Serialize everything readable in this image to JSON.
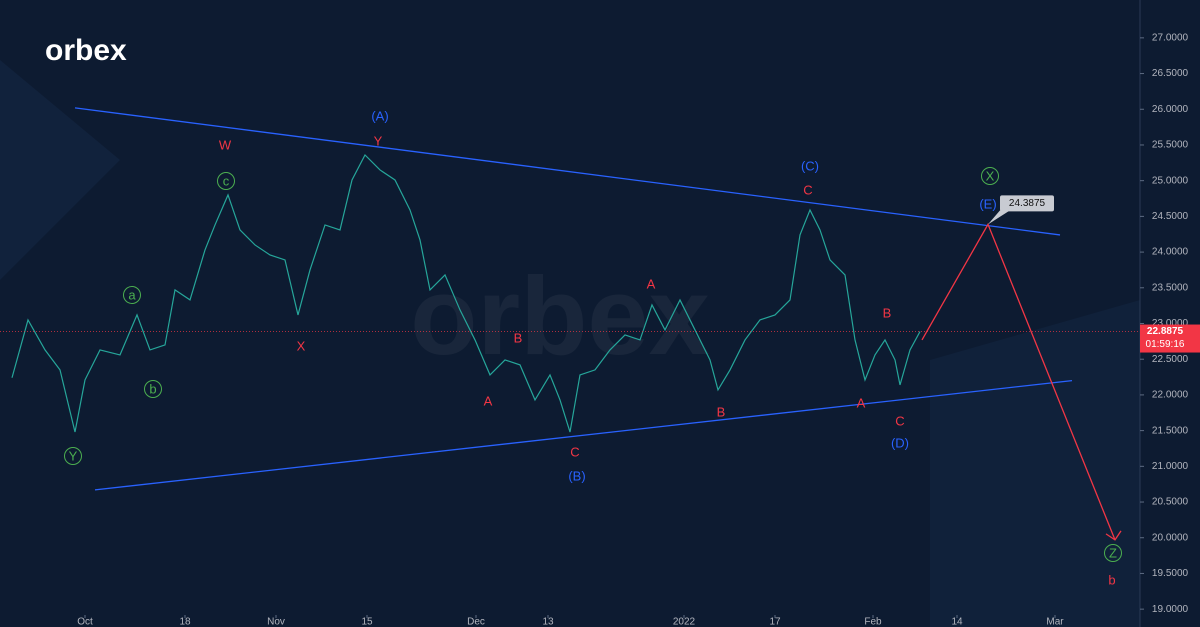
{
  "chart_data": {
    "type": "line",
    "logo": "orbex",
    "watermark": "orbex",
    "x": [
      1.2,
      2.8,
      4.5,
      6.0,
      7.5,
      8.5,
      10.0,
      12.0,
      13.7,
      15.0,
      16.5,
      17.5,
      19.0,
      20.5,
      21.5,
      22.8,
      24.0,
      25.5,
      27.0,
      28.5,
      29.8,
      31.0,
      32.5,
      34.0,
      35.2,
      36.5,
      38.0,
      39.5,
      41.0,
      42.0,
      43.0,
      44.5,
      46.0,
      47.5,
      49.0,
      50.5,
      52.0,
      53.5,
      55.0,
      56.0,
      57.0,
      58.0,
      59.5,
      61.0,
      62.5,
      64.0,
      65.2,
      66.5,
      68.0,
      69.0,
      70.0,
      71.0,
      71.8,
      73.0,
      74.5,
      76.0,
      77.5,
      79.0,
      80.0,
      81.0,
      82.0,
      83.0,
      84.5,
      85.5,
      86.5,
      87.5,
      88.5,
      89.5,
      90.0,
      91.0,
      92.0
    ],
    "series": [
      {
        "color": "#26a69a",
        "values": [
          22.24,
          23.05,
          22.63,
          22.35,
          21.48,
          22.21,
          22.63,
          22.56,
          23.12,
          22.63,
          22.7,
          23.47,
          23.33,
          24.03,
          24.38,
          24.8,
          24.31,
          24.1,
          23.96,
          23.89,
          23.12,
          23.75,
          24.38,
          24.31,
          25.01,
          25.36,
          25.15,
          25.01,
          24.59,
          24.17,
          23.47,
          23.68,
          23.19,
          22.77,
          22.28,
          22.49,
          22.42,
          21.93,
          22.28,
          21.93,
          21.48,
          22.28,
          22.35,
          22.63,
          22.84,
          22.77,
          23.26,
          22.91,
          23.33,
          23.05,
          22.77,
          22.49,
          22.07,
          22.35,
          22.77,
          23.05,
          23.12,
          23.33,
          24.24,
          24.59,
          24.31,
          23.89,
          23.68,
          22.77,
          22.21,
          22.56,
          22.77,
          22.49,
          22.14,
          22.63,
          22.8875
        ]
      }
    ],
    "countdown": "01:59:16",
    "xlim": [
      0,
      114
    ],
    "xticks": [
      {
        "value": 8.5,
        "label": "Oct"
      },
      {
        "value": 18.5,
        "label": "18"
      },
      {
        "value": 27.6,
        "label": "Nov"
      },
      {
        "value": 36.7,
        "label": "15"
      },
      {
        "value": 47.6,
        "label": "Dec"
      },
      {
        "value": 54.8,
        "label": "13"
      },
      {
        "value": 68.4,
        "label": "2022"
      },
      {
        "value": 77.5,
        "label": "17"
      },
      {
        "value": 87.3,
        "label": "Feb"
      },
      {
        "value": 95.7,
        "label": "14"
      },
      {
        "value": 105.5,
        "label": "Mar"
      }
    ],
    "ylim": [
      18.75,
      27.53
    ],
    "yticks": [
      {
        "value": 19,
        "label": "19.0000"
      },
      {
        "value": 19.5,
        "label": "19.5000"
      },
      {
        "value": 20,
        "label": "20.0000"
      },
      {
        "value": 20.5,
        "label": "20.5000"
      },
      {
        "value": 21,
        "label": "21.0000"
      },
      {
        "value": 21.5,
        "label": "21.5000"
      },
      {
        "value": 22,
        "label": "22.0000"
      },
      {
        "value": 22.5,
        "label": "22.5000"
      },
      {
        "value": 23,
        "label": "23.0000"
      },
      {
        "value": 23.5,
        "label": "23.5000"
      },
      {
        "value": 24,
        "label": "24.0000"
      },
      {
        "value": 24.5,
        "label": "24.5000"
      },
      {
        "value": 25,
        "label": "25.0000"
      },
      {
        "value": 25.5,
        "label": "25.5000"
      },
      {
        "value": 26,
        "label": "26.0000"
      },
      {
        "value": 26.5,
        "label": "26.5000"
      },
      {
        "value": 27,
        "label": "27.0000"
      }
    ],
    "trendlines": [
      {
        "color": "#2962ff",
        "x": [
          7.5,
          106.0
        ],
        "y": [
          26.02,
          24.24
        ]
      },
      {
        "color": "#2962ff",
        "x": [
          9.5,
          107.2
        ],
        "y": [
          20.67,
          22.2
        ]
      }
    ],
    "projection": {
      "color": "#f23645",
      "x": [
        92.2,
        98.8,
        111.5
      ],
      "y": [
        22.77,
        24.3875,
        19.97
      ]
    },
    "annotations": [
      {
        "text": "W",
        "color": "#f23645",
        "circled": false
      },
      {
        "text": "c",
        "color": "#4caf50",
        "circled": true
      },
      {
        "text": "a",
        "color": "#4caf50",
        "circled": true
      },
      {
        "text": "b",
        "color": "#4caf50",
        "circled": true
      },
      {
        "text": "Y",
        "color": "#4caf50",
        "circled": true
      },
      {
        "text": "X",
        "color": "#f23645",
        "circled": false
      },
      {
        "text": "(A)",
        "color": "#2962ff",
        "circled": false
      },
      {
        "text": "Y",
        "color": "#f23645",
        "circled": false
      },
      {
        "text": "A",
        "color": "#f23645",
        "circled": false
      },
      {
        "text": "B",
        "color": "#f23645",
        "circled": false
      },
      {
        "text": "C",
        "color": "#f23645",
        "circled": false
      },
      {
        "text": "(B)",
        "color": "#2962ff",
        "circled": false
      },
      {
        "text": "A",
        "color": "#f23645",
        "circled": false
      },
      {
        "text": "B",
        "color": "#f23645",
        "circled": false
      },
      {
        "text": "(C)",
        "color": "#2962ff",
        "circled": false
      },
      {
        "text": "C",
        "color": "#f23645",
        "circled": false
      },
      {
        "text": "A",
        "color": "#f23645",
        "circled": false
      },
      {
        "text": "B",
        "color": "#f23645",
        "circled": false
      },
      {
        "text": "C",
        "color": "#f23645",
        "circled": false
      },
      {
        "text": "(D)",
        "color": "#2962ff",
        "circled": false
      },
      {
        "text": "X",
        "color": "#4caf50",
        "circled": true
      },
      {
        "text": "(E)",
        "color": "#2962ff",
        "circled": false
      },
      {
        "text": "Z",
        "color": "#4caf50",
        "circled": true
      },
      {
        "text": "b",
        "color": "#f23645",
        "circled": false
      }
    ]
  }
}
